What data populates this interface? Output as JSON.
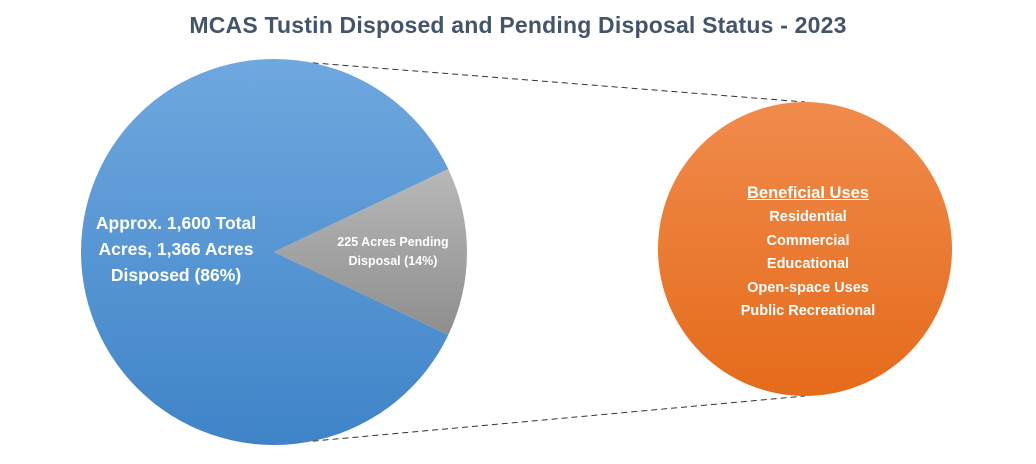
{
  "chart_data": {
    "type": "pie",
    "title": "MCAS Tustin Disposed and Pending Disposal Status - 2023",
    "total_label": "Approx. 1,600 Total Acres",
    "categories": [
      "Disposed",
      "Pending Disposal"
    ],
    "values": [
      1366,
      225
    ],
    "percent": [
      86,
      14
    ],
    "slices": [
      {
        "name": "Disposed",
        "value": 1366,
        "percent": 86,
        "color": "#5b9bd5",
        "label_lines": [
          "Approx. 1,600 Total",
          "Acres,  1,366 Acres",
          "Disposed (86%)"
        ]
      },
      {
        "name": "Pending Disposal",
        "value": 225,
        "percent": 14,
        "color": "#a6a6a6",
        "label_lines": [
          "225 Acres Pending",
          "Disposal (14%)"
        ]
      }
    ],
    "breakout": {
      "of_slice": "Disposed",
      "color": "#ed7d31",
      "heading": "Beneficial Uses",
      "items": [
        "Residential",
        "Commercial",
        "Educational",
        "Open-space Uses",
        "Public Recreational"
      ]
    },
    "legend": "none"
  }
}
